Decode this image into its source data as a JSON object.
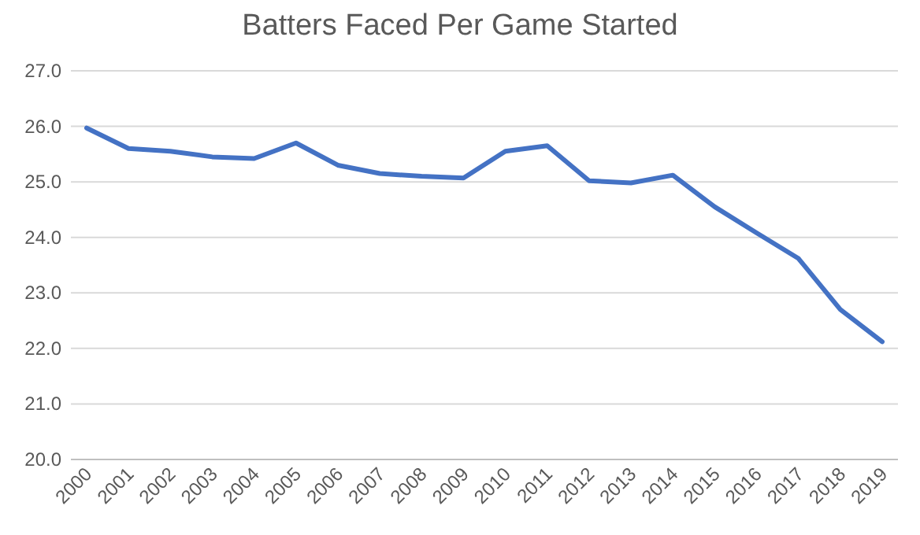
{
  "chart_data": {
    "type": "line",
    "title": "Batters Faced Per Game Started",
    "categories": [
      "2000",
      "2001",
      "2002",
      "2003",
      "2004",
      "2005",
      "2006",
      "2007",
      "2008",
      "2009",
      "2010",
      "2011",
      "2012",
      "2013",
      "2014",
      "2015",
      "2016",
      "2017",
      "2018",
      "2019"
    ],
    "series": [
      {
        "color": "#4472c4",
        "values": [
          25.97,
          25.6,
          25.55,
          25.45,
          25.42,
          25.7,
          25.3,
          25.15,
          25.1,
          25.07,
          25.55,
          25.65,
          25.02,
          24.98,
          25.12,
          24.55,
          24.08,
          23.62,
          22.7,
          22.12
        ]
      }
    ],
    "ylim": [
      20,
      27
    ],
    "yticks": [
      {
        "value": 20,
        "label": "20.0"
      },
      {
        "value": 21,
        "label": "21.0"
      },
      {
        "value": 22,
        "label": "22.0"
      },
      {
        "value": 23,
        "label": "23.0"
      },
      {
        "value": 24,
        "label": "24.0"
      },
      {
        "value": 25,
        "label": "25.0"
      },
      {
        "value": 26,
        "label": "26.0"
      },
      {
        "value": 27,
        "label": "27.0"
      }
    ],
    "grid": "y"
  }
}
